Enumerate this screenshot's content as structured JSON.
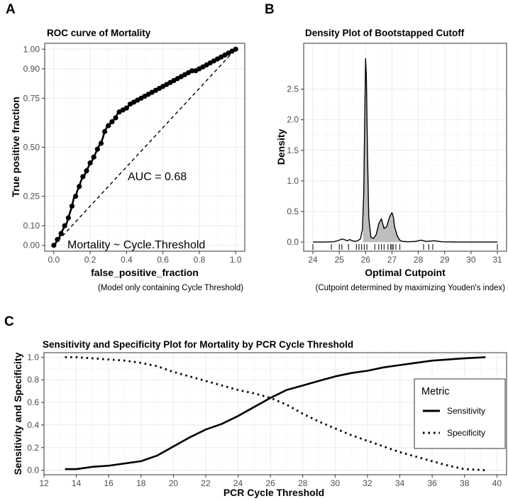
{
  "panel_tags": {
    "a": "A",
    "b": "B",
    "c": "C"
  },
  "chart_data": [
    {
      "id": "roc",
      "type": "line",
      "title": "ROC curve of Mortality",
      "xlabel": "false_positive_fraction",
      "ylabel": "True positive fraction",
      "caption": "(Model only containing Cycle Threshold)",
      "xlim": [
        -0.05,
        1.05
      ],
      "ylim": [
        -0.03,
        1.03
      ],
      "xticks": [
        0.0,
        0.2,
        0.4,
        0.6,
        0.8,
        1.0
      ],
      "xtick_labels": [
        "0.0",
        "0.2",
        "0.4",
        "0.6",
        "0.8",
        "1.0"
      ],
      "yticks": [
        0.0,
        0.1,
        0.25,
        0.5,
        0.75,
        0.9,
        1.0
      ],
      "ytick_labels": [
        "0.00",
        "0.10",
        "0.25",
        "0.50",
        "0.75",
        "0.90",
        "1.00"
      ],
      "annotations": [
        "AUC = 0.68",
        "Mortality ~ Cycle.Threshold"
      ],
      "reference_line": {
        "x": [
          0,
          1
        ],
        "y": [
          0,
          1
        ],
        "style": "dashed"
      },
      "curve": [
        [
          0.0,
          0.0
        ],
        [
          0.01,
          0.01
        ],
        [
          0.02,
          0.03
        ],
        [
          0.03,
          0.04
        ],
        [
          0.04,
          0.06
        ],
        [
          0.05,
          0.08
        ],
        [
          0.06,
          0.1
        ],
        [
          0.07,
          0.11
        ],
        [
          0.08,
          0.14
        ],
        [
          0.09,
          0.17
        ],
        [
          0.1,
          0.2
        ],
        [
          0.11,
          0.24
        ],
        [
          0.12,
          0.25
        ],
        [
          0.13,
          0.28
        ],
        [
          0.14,
          0.3
        ],
        [
          0.15,
          0.33
        ],
        [
          0.16,
          0.35
        ],
        [
          0.17,
          0.36
        ],
        [
          0.18,
          0.38
        ],
        [
          0.19,
          0.4
        ],
        [
          0.2,
          0.42
        ],
        [
          0.21,
          0.43
        ],
        [
          0.22,
          0.45
        ],
        [
          0.23,
          0.47
        ],
        [
          0.24,
          0.49
        ],
        [
          0.25,
          0.51
        ],
        [
          0.26,
          0.52
        ],
        [
          0.27,
          0.55
        ],
        [
          0.28,
          0.58
        ],
        [
          0.29,
          0.6
        ],
        [
          0.3,
          0.61
        ],
        [
          0.31,
          0.62
        ],
        [
          0.32,
          0.63
        ],
        [
          0.33,
          0.64
        ],
        [
          0.34,
          0.65
        ],
        [
          0.35,
          0.67
        ],
        [
          0.36,
          0.68
        ],
        [
          0.37,
          0.69
        ],
        [
          0.38,
          0.69
        ],
        [
          0.39,
          0.7
        ],
        [
          0.4,
          0.7
        ],
        [
          0.41,
          0.71
        ],
        [
          0.42,
          0.72
        ],
        [
          0.43,
          0.72
        ],
        [
          0.44,
          0.73
        ],
        [
          0.45,
          0.73
        ],
        [
          0.46,
          0.74
        ],
        [
          0.47,
          0.75
        ],
        [
          0.48,
          0.75
        ],
        [
          0.49,
          0.76
        ],
        [
          0.5,
          0.76
        ],
        [
          0.52,
          0.77
        ],
        [
          0.54,
          0.78
        ],
        [
          0.56,
          0.79
        ],
        [
          0.58,
          0.8
        ],
        [
          0.6,
          0.81
        ],
        [
          0.62,
          0.82
        ],
        [
          0.64,
          0.83
        ],
        [
          0.66,
          0.84
        ],
        [
          0.68,
          0.85
        ],
        [
          0.7,
          0.86
        ],
        [
          0.72,
          0.87
        ],
        [
          0.74,
          0.88
        ],
        [
          0.76,
          0.89
        ],
        [
          0.78,
          0.89
        ],
        [
          0.8,
          0.9
        ],
        [
          0.82,
          0.91
        ],
        [
          0.84,
          0.92
        ],
        [
          0.86,
          0.93
        ],
        [
          0.88,
          0.94
        ],
        [
          0.9,
          0.95
        ],
        [
          0.92,
          0.96
        ],
        [
          0.94,
          0.97
        ],
        [
          0.96,
          0.98
        ],
        [
          0.98,
          0.99
        ],
        [
          1.0,
          1.0
        ]
      ],
      "points": [
        [
          0.0,
          0.0
        ],
        [
          0.02,
          0.03
        ],
        [
          0.04,
          0.06
        ],
        [
          0.06,
          0.1
        ],
        [
          0.08,
          0.14
        ],
        [
          0.1,
          0.2
        ],
        [
          0.12,
          0.25
        ],
        [
          0.14,
          0.3
        ],
        [
          0.16,
          0.35
        ],
        [
          0.18,
          0.38
        ],
        [
          0.2,
          0.42
        ],
        [
          0.22,
          0.45
        ],
        [
          0.24,
          0.49
        ],
        [
          0.26,
          0.52
        ],
        [
          0.28,
          0.58
        ],
        [
          0.3,
          0.61
        ],
        [
          0.32,
          0.63
        ],
        [
          0.34,
          0.65
        ],
        [
          0.36,
          0.68
        ],
        [
          0.38,
          0.69
        ],
        [
          0.4,
          0.7
        ],
        [
          0.42,
          0.72
        ],
        [
          0.44,
          0.73
        ],
        [
          0.46,
          0.74
        ],
        [
          0.48,
          0.75
        ],
        [
          0.5,
          0.76
        ],
        [
          0.52,
          0.77
        ],
        [
          0.54,
          0.78
        ],
        [
          0.56,
          0.79
        ],
        [
          0.58,
          0.8
        ],
        [
          0.6,
          0.81
        ],
        [
          0.62,
          0.82
        ],
        [
          0.64,
          0.83
        ],
        [
          0.66,
          0.84
        ],
        [
          0.68,
          0.85
        ],
        [
          0.7,
          0.86
        ],
        [
          0.72,
          0.87
        ],
        [
          0.74,
          0.88
        ],
        [
          0.76,
          0.89
        ],
        [
          0.78,
          0.89
        ],
        [
          0.8,
          0.9
        ],
        [
          0.82,
          0.91
        ],
        [
          0.84,
          0.92
        ],
        [
          0.86,
          0.93
        ],
        [
          0.88,
          0.94
        ],
        [
          0.9,
          0.95
        ],
        [
          0.92,
          0.96
        ],
        [
          0.94,
          0.97
        ],
        [
          0.96,
          0.98
        ],
        [
          0.98,
          0.99
        ],
        [
          1.0,
          1.0
        ]
      ]
    },
    {
      "id": "density",
      "type": "area",
      "title": "Density Plot of Bootstapped Cutoff",
      "xlabel": "Optimal Cutpoint",
      "ylabel": "Density",
      "caption": "(Cutpoint determined by maximizing Youden's index)",
      "xlim": [
        23.65,
        31.35
      ],
      "ylim": [
        -0.15,
        3.25
      ],
      "xticks": [
        24,
        25,
        26,
        27,
        28,
        29,
        30,
        31
      ],
      "xtick_labels": [
        "24",
        "25",
        "26",
        "27",
        "28",
        "29",
        "30",
        "31"
      ],
      "yticks": [
        0.0,
        0.5,
        1.0,
        1.5,
        2.0,
        2.5
      ],
      "ytick_labels": [
        "0.0",
        "0.5",
        "1.0",
        "1.5",
        "2.0",
        "2.5"
      ],
      "fill_range": [
        25.9,
        27.35
      ],
      "rug": [
        24.0,
        24.7,
        25.0,
        25.1,
        25.35,
        25.65,
        25.75,
        25.85,
        25.95,
        26.05,
        26.35,
        26.5,
        26.6,
        26.7,
        26.85,
        26.95,
        27.0,
        27.05,
        27.15,
        27.3,
        28.2,
        28.4,
        28.55,
        31.0
      ],
      "curve": [
        [
          24.0,
          0.0
        ],
        [
          24.4,
          0.0
        ],
        [
          24.8,
          0.005
        ],
        [
          25.0,
          0.03
        ],
        [
          25.1,
          0.05
        ],
        [
          25.2,
          0.04
        ],
        [
          25.3,
          0.02
        ],
        [
          25.4,
          0.04
        ],
        [
          25.5,
          0.02
        ],
        [
          25.6,
          0.01
        ],
        [
          25.7,
          0.02
        ],
        [
          25.8,
          0.05
        ],
        [
          25.88,
          0.2
        ],
        [
          25.93,
          0.8
        ],
        [
          25.97,
          2.1
        ],
        [
          26.0,
          3.0
        ],
        [
          26.03,
          2.7
        ],
        [
          26.07,
          1.5
        ],
        [
          26.12,
          0.4
        ],
        [
          26.2,
          0.08
        ],
        [
          26.3,
          0.06
        ],
        [
          26.4,
          0.12
        ],
        [
          26.5,
          0.3
        ],
        [
          26.6,
          0.38
        ],
        [
          26.7,
          0.22
        ],
        [
          26.8,
          0.25
        ],
        [
          26.9,
          0.4
        ],
        [
          27.0,
          0.48
        ],
        [
          27.05,
          0.42
        ],
        [
          27.1,
          0.25
        ],
        [
          27.2,
          0.1
        ],
        [
          27.3,
          0.03
        ],
        [
          27.4,
          0.01
        ],
        [
          27.6,
          0.005
        ],
        [
          27.9,
          0.01
        ],
        [
          28.1,
          0.03
        ],
        [
          28.3,
          0.01
        ],
        [
          28.6,
          0.02
        ],
        [
          28.9,
          0.005
        ],
        [
          29.5,
          0.0
        ],
        [
          30.5,
          0.0
        ],
        [
          31.0,
          0.0
        ]
      ]
    },
    {
      "id": "sens_spec",
      "type": "line",
      "title": "Sensitivity and Specificity Plot for Mortality by PCR Cycle Threshold",
      "xlabel": "PCR Cycle Threshold",
      "ylabel": "Sensitivity and Specificity",
      "xlim": [
        12.0,
        40.6
      ],
      "ylim": [
        -0.04,
        1.04
      ],
      "xticks": [
        12,
        14,
        16,
        18,
        20,
        22,
        24,
        26,
        28,
        30,
        32,
        34,
        36,
        38,
        40
      ],
      "xtick_labels": [
        "12",
        "14",
        "16",
        "18",
        "20",
        "22",
        "24",
        "26",
        "28",
        "30",
        "32",
        "34",
        "36",
        "38",
        "40"
      ],
      "yticks": [
        0.0,
        0.2,
        0.4,
        0.6,
        0.8,
        1.0
      ],
      "ytick_labels": [
        "0.0",
        "0.2",
        "0.4",
        "0.6",
        "0.8",
        "1.0"
      ],
      "legend": {
        "title": "Metric",
        "position": "right"
      },
      "series": [
        {
          "name": "Sensitivity",
          "style": "solid",
          "x": [
            13.3,
            14.0,
            15.0,
            16.0,
            17.0,
            18.0,
            19.0,
            20.0,
            21.0,
            22.0,
            23.0,
            24.0,
            25.0,
            26.0,
            27.0,
            28.0,
            29.0,
            30.0,
            31.0,
            32.0,
            33.0,
            34.0,
            35.0,
            36.0,
            37.0,
            38.0,
            39.3
          ],
          "y": [
            0.01,
            0.01,
            0.03,
            0.04,
            0.06,
            0.08,
            0.13,
            0.21,
            0.29,
            0.36,
            0.41,
            0.48,
            0.56,
            0.64,
            0.71,
            0.75,
            0.79,
            0.83,
            0.86,
            0.88,
            0.91,
            0.93,
            0.95,
            0.97,
            0.98,
            0.99,
            1.0
          ]
        },
        {
          "name": "Specificity",
          "style": "dotted",
          "x": [
            13.3,
            14.0,
            15.0,
            16.0,
            17.0,
            18.0,
            19.0,
            20.0,
            21.0,
            22.0,
            23.0,
            24.0,
            25.0,
            26.0,
            27.0,
            28.0,
            29.0,
            30.0,
            31.0,
            32.0,
            33.0,
            34.0,
            35.0,
            36.0,
            37.0,
            38.0,
            39.3
          ],
          "y": [
            1.0,
            1.0,
            0.99,
            0.98,
            0.97,
            0.95,
            0.92,
            0.87,
            0.83,
            0.79,
            0.75,
            0.71,
            0.68,
            0.64,
            0.58,
            0.5,
            0.43,
            0.37,
            0.31,
            0.26,
            0.21,
            0.16,
            0.12,
            0.08,
            0.04,
            0.01,
            0.0
          ]
        }
      ]
    }
  ]
}
